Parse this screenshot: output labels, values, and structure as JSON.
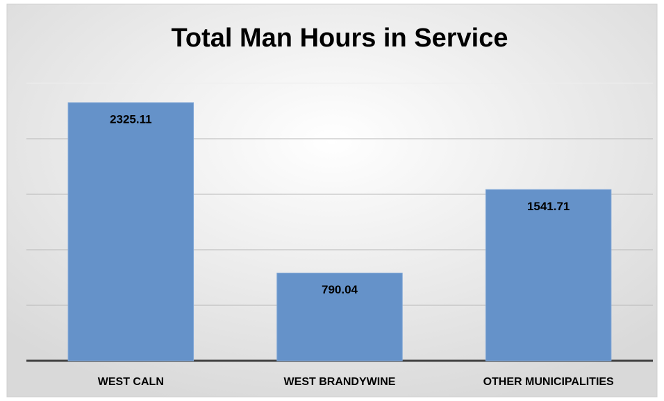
{
  "chart_data": {
    "type": "bar",
    "title": "Total Man Hours in Service",
    "categories": [
      "WEST CALN",
      "WEST BRANDYWINE",
      "OTHER MUNICIPALITIES"
    ],
    "values": [
      2325.11,
      790.04,
      1541.71
    ],
    "color": "#6592c9",
    "ylim": [
      0,
      2500
    ],
    "yticks": [
      0,
      500,
      1000,
      1500,
      2000,
      2500
    ],
    "grid": true
  }
}
